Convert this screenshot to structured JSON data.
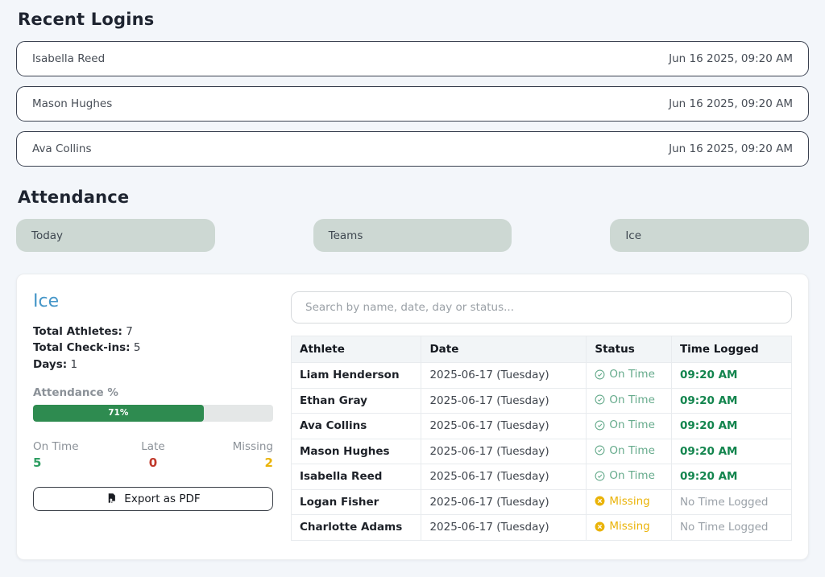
{
  "recent_logins": {
    "title": "Recent Logins",
    "items": [
      {
        "name": "Isabella Reed",
        "time": "Jun 16 2025, 09:20 AM"
      },
      {
        "name": "Mason Hughes",
        "time": "Jun 16 2025, 09:20 AM"
      },
      {
        "name": "Ava Collins",
        "time": "Jun 16 2025, 09:20 AM"
      }
    ]
  },
  "attendance": {
    "title": "Attendance",
    "filters": [
      {
        "label": "Today"
      },
      {
        "label": "Teams"
      },
      {
        "label": "Ice"
      }
    ],
    "panel": {
      "team_name": "Ice",
      "stats": [
        {
          "label": "Total Athletes:",
          "value": "7"
        },
        {
          "label": "Total Check-ins:",
          "value": "5"
        },
        {
          "label": "Days:",
          "value": "1"
        }
      ],
      "attendance_pct_label": "Attendance %",
      "attendance_pct_text": "71%",
      "attendance_pct_value": 71,
      "summary": [
        {
          "label": "On Time",
          "value": "5",
          "color": "#2e9e62"
        },
        {
          "label": "Late",
          "value": "0",
          "color": "#c0392b"
        },
        {
          "label": "Missing",
          "value": "2",
          "color": "#eab308"
        }
      ],
      "export_label": "Export as PDF"
    },
    "search": {
      "placeholder": "Search by name, date, day or status..."
    },
    "table": {
      "headers": [
        "Athlete",
        "Date",
        "Status",
        "Time Logged"
      ],
      "rows": [
        {
          "athlete": "Liam Henderson",
          "date": "2025-06-17 (Tuesday)",
          "status": "On Time",
          "status_type": "ontime",
          "time": "09:20 AM"
        },
        {
          "athlete": "Ethan Gray",
          "date": "2025-06-17 (Tuesday)",
          "status": "On Time",
          "status_type": "ontime",
          "time": "09:20 AM"
        },
        {
          "athlete": "Ava Collins",
          "date": "2025-06-17 (Tuesday)",
          "status": "On Time",
          "status_type": "ontime",
          "time": "09:20 AM"
        },
        {
          "athlete": "Mason Hughes",
          "date": "2025-06-17 (Tuesday)",
          "status": "On Time",
          "status_type": "ontime",
          "time": "09:20 AM"
        },
        {
          "athlete": "Isabella Reed",
          "date": "2025-06-17 (Tuesday)",
          "status": "On Time",
          "status_type": "ontime",
          "time": "09:20 AM"
        },
        {
          "athlete": "Logan Fisher",
          "date": "2025-06-17 (Tuesday)",
          "status": "Missing",
          "status_type": "missing",
          "time": "No Time Logged"
        },
        {
          "athlete": "Charlotte Adams",
          "date": "2025-06-17 (Tuesday)",
          "status": "Missing",
          "status_type": "missing",
          "time": "No Time Logged"
        }
      ]
    }
  },
  "colors": {
    "page_bg": "#f3f6fa",
    "pill_bg": "#cdd8d3",
    "team_title_blue": "#4596c8",
    "progress_green": "#2e8b50",
    "ontime_green": "#66ab8c",
    "time_green": "#13854e",
    "missing_amber": "#eab308",
    "late_red": "#c0392b"
  }
}
